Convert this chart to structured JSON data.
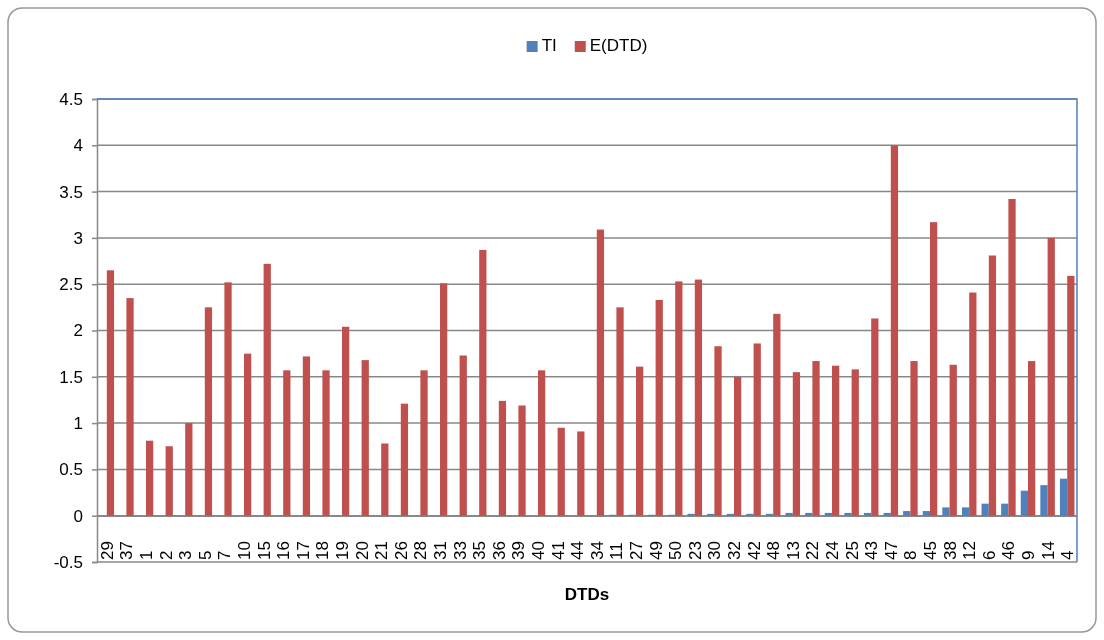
{
  "chart_data": {
    "type": "bar",
    "xlabel": "DTDs",
    "categories": [
      "29",
      "37",
      "1",
      "2",
      "3",
      "5",
      "7",
      "10",
      "15",
      "16",
      "17",
      "18",
      "19",
      "20",
      "21",
      "26",
      "28",
      "31",
      "33",
      "35",
      "36",
      "39",
      "40",
      "41",
      "44",
      "34",
      "11",
      "27",
      "49",
      "50",
      "23",
      "30",
      "32",
      "42",
      "48",
      "13",
      "22",
      "24",
      "25",
      "43",
      "47",
      "8",
      "45",
      "38",
      "12",
      "6",
      "46",
      "9",
      "14",
      "4"
    ],
    "series": [
      {
        "name": "TI",
        "color": "#4f81bd",
        "values": [
          0,
          0,
          0,
          0,
          0,
          0,
          0,
          0,
          0,
          0,
          0,
          0,
          0,
          0,
          0,
          0,
          0,
          0,
          0,
          0,
          0,
          0,
          0,
          0,
          0,
          0,
          0.01,
          0.01,
          0.01,
          0.01,
          0.02,
          0.02,
          0.02,
          0.02,
          0.02,
          0.03,
          0.03,
          0.03,
          0.03,
          0.03,
          0.03,
          0.05,
          0.05,
          0.09,
          0.09,
          0.13,
          0.13,
          0.27,
          0.33,
          0.4
        ]
      },
      {
        "name": "E(DTD)",
        "color": "#c0504d",
        "values": [
          2.65,
          2.35,
          0.81,
          0.75,
          1.0,
          2.25,
          2.52,
          1.75,
          2.72,
          1.57,
          1.72,
          1.57,
          2.04,
          1.68,
          0.78,
          1.21,
          1.57,
          2.51,
          1.73,
          2.87,
          1.24,
          1.19,
          1.57,
          0.95,
          0.91,
          3.09,
          2.25,
          1.61,
          2.33,
          2.53,
          2.55,
          1.83,
          1.5,
          1.86,
          2.18,
          1.55,
          1.67,
          1.62,
          1.58,
          2.13,
          4.0,
          1.67,
          3.17,
          1.63,
          2.41,
          2.81,
          3.42,
          1.67,
          3.0,
          2.59
        ]
      }
    ],
    "ylim": [
      -0.5,
      4.5
    ],
    "yticks": [
      -0.5,
      0,
      0.5,
      1,
      1.5,
      2,
      2.5,
      3,
      3.5,
      4,
      4.5
    ],
    "grid": "y",
    "legend": "top"
  }
}
